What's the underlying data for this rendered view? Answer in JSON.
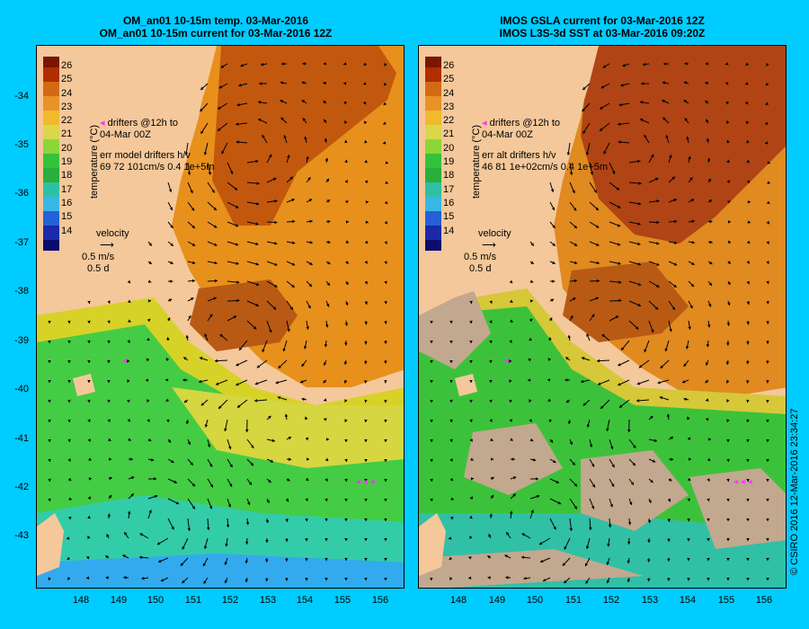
{
  "left": {
    "title_line1": "OM_an01 10-15m temp. 03-Mar-2016",
    "title_line2": "OM_an01 10-15m current for 03-Mar-2016 12Z",
    "legend_drifters": "drifters @12h to",
    "legend_drifters_date": "04-Mar 00Z",
    "legend_err": "err model drifters h/v",
    "legend_err_values": "69 72 101cm/s 0.4 1e+5m"
  },
  "right": {
    "title_line1": "IMOS GSLA current for 03-Mar-2016 12Z",
    "title_line2": "IMOS L3S-3d SST at 03-Mar-2016 09:20Z",
    "legend_drifters": "drifters @12h to",
    "legend_drifters_date": "04-Mar 00Z",
    "legend_err": "err alt drifters h/v",
    "legend_err_values": "46 81 1e+02cm/s 0.4 1e+5m"
  },
  "colorbar": {
    "ticks": [
      "26",
      "25",
      "24",
      "23",
      "22",
      "21",
      "20",
      "19",
      "18",
      "17",
      "16",
      "15",
      "14"
    ],
    "label": "temperature (°C)"
  },
  "velocity_legend": {
    "title": "velocity",
    "speed": "0.5 m/s",
    "time": "0.5 d"
  },
  "y_axis": [
    "-34",
    "-35",
    "-36",
    "-37",
    "-38",
    "-39",
    "-40",
    "-41",
    "-42",
    "-43"
  ],
  "x_axis": [
    "148",
    "149",
    "150",
    "151",
    "152",
    "153",
    "154",
    "155",
    "156"
  ],
  "credit": "© CSIRO 2016  12-Mar-2016 23:34:27",
  "colors": {
    "background": "#00ccff",
    "land": "#f4c89a",
    "drifter": "#ff33ff",
    "no_data": "#c2a88e"
  }
}
